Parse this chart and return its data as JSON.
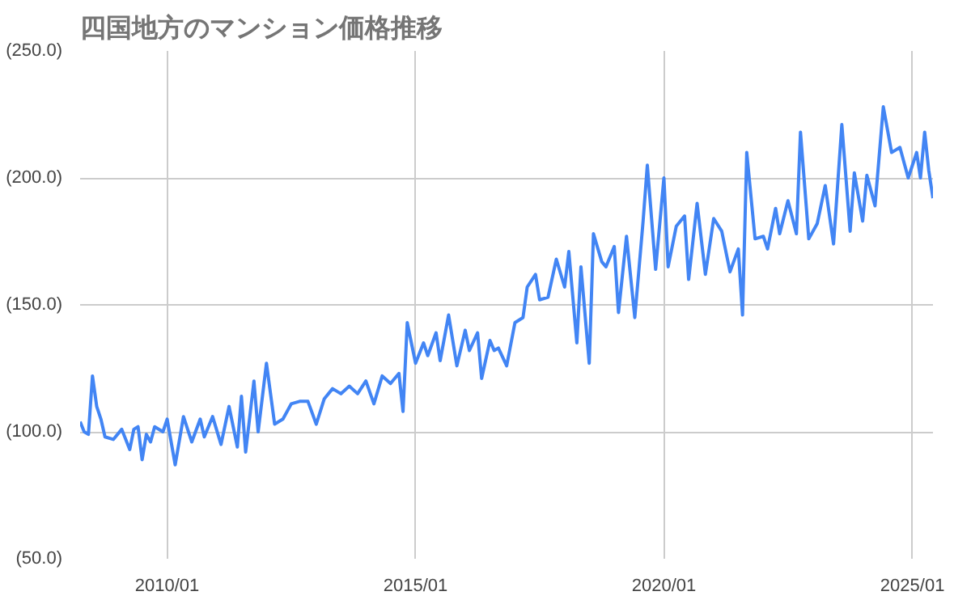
{
  "chart_data": {
    "type": "line",
    "title": "四国地方のマンション価格推移",
    "x": [
      "2008-04",
      "2008-05",
      "2008-06",
      "2008-07",
      "2008-08",
      "2008-09",
      "2008-10",
      "2008-12",
      "2009-02",
      "2009-04",
      "2009-05",
      "2009-06",
      "2009-07",
      "2009-08",
      "2009-09",
      "2009-10",
      "2009-12",
      "2010-01",
      "2010-03",
      "2010-05",
      "2010-07",
      "2010-09",
      "2010-10",
      "2010-12",
      "2011-02",
      "2011-04",
      "2011-06",
      "2011-07",
      "2011-08",
      "2011-10",
      "2011-11",
      "2012-01",
      "2012-03",
      "2012-05",
      "2012-07",
      "2012-09",
      "2012-11",
      "2013-01",
      "2013-03",
      "2013-05",
      "2013-07",
      "2013-09",
      "2013-11",
      "2014-01",
      "2014-03",
      "2014-05",
      "2014-07",
      "2014-09",
      "2014-10",
      "2014-11",
      "2015-01",
      "2015-03",
      "2015-04",
      "2015-06",
      "2015-07",
      "2015-09",
      "2015-11",
      "2016-01",
      "2016-02",
      "2016-04",
      "2016-05",
      "2016-07",
      "2016-08",
      "2016-09",
      "2016-11",
      "2017-01",
      "2017-03",
      "2017-04",
      "2017-06",
      "2017-07",
      "2017-09",
      "2017-11",
      "2018-01",
      "2018-02",
      "2018-04",
      "2018-05",
      "2018-07",
      "2018-08",
      "2018-10",
      "2018-11",
      "2019-01",
      "2019-02",
      "2019-04",
      "2019-06",
      "2019-08",
      "2019-09",
      "2019-11",
      "2020-01",
      "2020-02",
      "2020-04",
      "2020-06",
      "2020-07",
      "2020-09",
      "2020-11",
      "2021-01",
      "2021-03",
      "2021-05",
      "2021-07",
      "2021-08",
      "2021-09",
      "2021-11",
      "2022-01",
      "2022-02",
      "2022-04",
      "2022-05",
      "2022-07",
      "2022-09",
      "2022-10",
      "2022-12",
      "2023-02",
      "2023-04",
      "2023-06",
      "2023-08",
      "2023-10",
      "2023-11",
      "2024-01",
      "2024-02",
      "2024-04",
      "2024-06",
      "2024-08",
      "2024-10",
      "2024-12",
      "2025-02",
      "2025-03",
      "2025-04",
      "2025-05",
      "2025-06"
    ],
    "series": [
      {
        "color": "#4285f4",
        "values": [
          104,
          100,
          99,
          122,
          110,
          105,
          98,
          97,
          101,
          93,
          101,
          102,
          89,
          99,
          96,
          102,
          100,
          105,
          87,
          106,
          96,
          105,
          98,
          106,
          95,
          110,
          94,
          114,
          92,
          120,
          100,
          127,
          103,
          105,
          111,
          112,
          112,
          103,
          113,
          117,
          115,
          118,
          115,
          120,
          111,
          122,
          119,
          123,
          108,
          143,
          127,
          135,
          130,
          139,
          128,
          146,
          126,
          140,
          132,
          139,
          121,
          136,
          132,
          133,
          126,
          143,
          145,
          157,
          162,
          152,
          153,
          168,
          157,
          171,
          135,
          165,
          127,
          178,
          167,
          165,
          173,
          147,
          177,
          145,
          183,
          205,
          164,
          200,
          165,
          181,
          185,
          160,
          190,
          162,
          184,
          179,
          163,
          172,
          146,
          210,
          176,
          177,
          172,
          188,
          178,
          191,
          178,
          218,
          176,
          182,
          197,
          174,
          221,
          179,
          202,
          183,
          201,
          189,
          228,
          210,
          212,
          200,
          210,
          200,
          218,
          203,
          192
        ]
      }
    ],
    "xlim": [
      "2008-04",
      "2025-06"
    ],
    "xticks": [
      {
        "value": "2010-01",
        "label": "2010/01"
      },
      {
        "value": "2015-01",
        "label": "2015/01"
      },
      {
        "value": "2020-01",
        "label": "2020/01"
      },
      {
        "value": "2025-01",
        "label": "2025/01"
      }
    ],
    "ylim": [
      50,
      250
    ],
    "yticks": [
      {
        "value": 50,
        "label": "(50.0)"
      },
      {
        "value": 100,
        "label": "(100.0)"
      },
      {
        "value": 150,
        "label": "(150.0)"
      },
      {
        "value": 200,
        "label": "(200.0)"
      },
      {
        "value": 250,
        "label": "(250.0)"
      }
    ],
    "grid": true
  }
}
